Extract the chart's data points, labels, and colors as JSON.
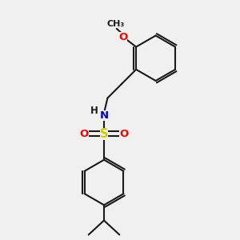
{
  "bg_color": "#f0f0f0",
  "bond_color": "#1a1a1a",
  "bond_width": 1.5,
  "atom_colors": {
    "O": "#ff0000",
    "N": "#0000cd",
    "S": "#cccc00",
    "C": "#1a1a1a"
  },
  "font_size": 8.5
}
